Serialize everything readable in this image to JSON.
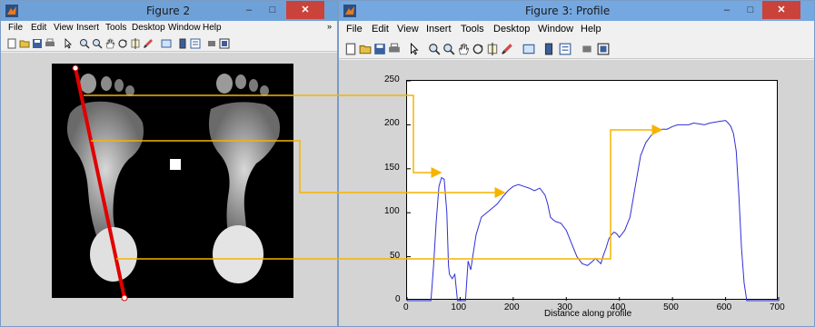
{
  "figure2": {
    "title": "Figure 2",
    "menu": [
      "File",
      "Edit",
      "View",
      "Insert",
      "Tools",
      "Desktop",
      "Window",
      "Help"
    ],
    "menu_more": "»",
    "min": "–",
    "max": "□",
    "close": "✕"
  },
  "figure3": {
    "title": "Figure 3: Profile",
    "menu": [
      "File",
      "Edit",
      "View",
      "Insert",
      "Tools",
      "Desktop",
      "Window",
      "Help"
    ],
    "min": "–",
    "max": "□",
    "close": "✕"
  },
  "colors": {
    "profile_line": "#e00000",
    "annotation": "#f5b400",
    "series": "#2f2fd6"
  },
  "chart_data": {
    "type": "line",
    "xlabel": "Distance along profile",
    "xlim": [
      0,
      700
    ],
    "ylim": [
      0,
      250
    ],
    "xticks": [
      0,
      100,
      200,
      300,
      400,
      500,
      600,
      700
    ],
    "yticks": [
      0,
      50,
      100,
      150,
      200,
      250
    ],
    "series": [
      {
        "x": [
          0,
          30,
          45,
          50,
          55,
          60,
          65,
          70,
          75,
          78,
          80,
          85,
          90,
          95,
          100,
          105,
          110,
          115,
          120,
          125,
          130,
          140,
          150,
          160,
          170,
          180,
          190,
          200,
          210,
          220,
          230,
          240,
          250,
          260,
          265,
          270,
          275,
          280,
          290,
          300,
          310,
          320,
          330,
          340,
          350,
          355,
          360,
          365,
          370,
          375,
          380,
          385,
          390,
          395,
          400,
          410,
          420,
          430,
          440,
          450,
          460,
          470,
          480,
          490,
          500,
          510,
          520,
          530,
          540,
          550,
          560,
          570,
          580,
          590,
          600,
          605,
          610,
          615,
          620,
          625,
          630,
          635,
          640,
          645,
          650,
          660,
          670,
          700
        ],
        "y": [
          0,
          0,
          0,
          40,
          90,
          130,
          140,
          138,
          100,
          40,
          30,
          25,
          30,
          0,
          0,
          0,
          0,
          45,
          35,
          55,
          75,
          95,
          100,
          105,
          110,
          118,
          125,
          130,
          132,
          130,
          128,
          125,
          128,
          120,
          110,
          95,
          92,
          90,
          88,
          80,
          65,
          50,
          42,
          40,
          45,
          48,
          45,
          42,
          52,
          60,
          70,
          75,
          78,
          76,
          72,
          80,
          95,
          130,
          165,
          180,
          188,
          193,
          195,
          195,
          198,
          200,
          200,
          200,
          202,
          201,
          200,
          202,
          203,
          204,
          205,
          202,
          198,
          190,
          170,
          120,
          60,
          20,
          0,
          0,
          0,
          0,
          0,
          0
        ]
      }
    ]
  }
}
